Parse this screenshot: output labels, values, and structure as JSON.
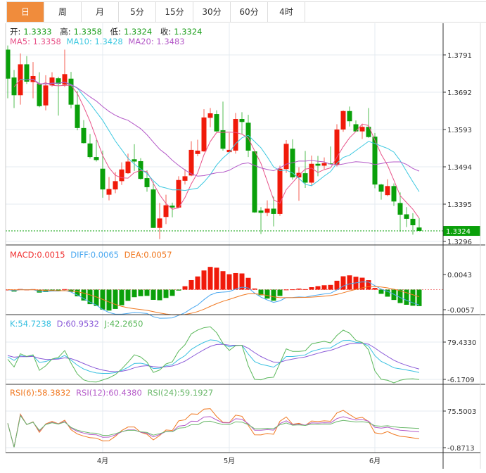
{
  "tabs": [
    "日",
    "周",
    "月",
    "5分",
    "15分",
    "30分",
    "60分",
    "4时"
  ],
  "active_tab": 0,
  "ohlc_info": {
    "open_label": "开:",
    "open": "1.3333",
    "high_label": "高:",
    "high": "1.3358",
    "low_label": "低:",
    "low": "1.3324",
    "close_label": "收:",
    "close": "1.3324"
  },
  "ma_info": {
    "ma5": "MA5: 1.3358",
    "ma10": "MA10: 1.3428",
    "ma20": "MA20: 1.3483"
  },
  "macd_info": {
    "macd": "MACD:0.0015",
    "diff": "DIFF:0.0065",
    "dea": "DEA:0.0057"
  },
  "kdj_info": {
    "k": "K:54.7238",
    "d": "D:60.9532",
    "j": "J:42.2650"
  },
  "rsi_info": {
    "rsi6": "RSI(6):58.3832",
    "rsi12": "RSI(12):60.4380",
    "rsi24": "RSI(24):59.1927"
  },
  "colors": {
    "up": "#f01a0a",
    "down": "#0aa00a",
    "ma5": "#e8548a",
    "ma10": "#3cc8e0",
    "ma20": "#b45ac8",
    "diff": "#4aa8f0",
    "dea": "#f07820",
    "k": "#38c0e0",
    "d": "#8a5ad8",
    "j": "#5ab85a",
    "rsi6": "#f07820",
    "rsi12": "#b45ac8",
    "rsi24": "#6ab86a",
    "last": "#0aa00a",
    "grid": "#e4ebf0"
  },
  "chart_data": {
    "type": "candlestick",
    "price_ticks": [
      "1.3791",
      "1.3692",
      "1.3593",
      "1.3494",
      "1.3395",
      "1.3296"
    ],
    "last_price": "1.3324",
    "macd_ticks": [
      "0.0043",
      "-0.0057"
    ],
    "kdj_ticks": [
      "79.4330",
      "-6.1709"
    ],
    "rsi_ticks": [
      "75.5003",
      "-0.8713"
    ],
    "x_labels": [
      {
        "label": "4月",
        "index": 15
      },
      {
        "label": "5月",
        "index": 35
      },
      {
        "label": "6月",
        "index": 58
      }
    ],
    "candles": [
      [
        1.3805,
        1.3816,
        1.3676,
        1.3728
      ],
      [
        1.3731,
        1.3751,
        1.365,
        1.3684
      ],
      [
        1.3684,
        1.3795,
        1.3659,
        1.3766
      ],
      [
        1.3766,
        1.3788,
        1.3714,
        1.372
      ],
      [
        1.3719,
        1.3772,
        1.3676,
        1.3735
      ],
      [
        1.3715,
        1.3745,
        1.3652,
        1.3655
      ],
      [
        1.3657,
        1.3737,
        1.3644,
        1.371
      ],
      [
        1.371,
        1.3745,
        1.3707,
        1.3731
      ],
      [
        1.3729,
        1.3733,
        1.363,
        1.3714
      ],
      [
        1.3712,
        1.3805,
        1.3706,
        1.374
      ],
      [
        1.3728,
        1.3746,
        1.3649,
        1.3659
      ],
      [
        1.3659,
        1.3695,
        1.3591,
        1.3597
      ],
      [
        1.3597,
        1.3618,
        1.3556,
        1.3557
      ],
      [
        1.3556,
        1.3581,
        1.3516,
        1.352
      ],
      [
        1.352,
        1.3565,
        1.3508,
        1.3512
      ],
      [
        1.3489,
        1.3537,
        1.3412,
        1.3434
      ],
      [
        1.342,
        1.3467,
        1.3405,
        1.3435
      ],
      [
        1.3434,
        1.348,
        1.3424,
        1.3456
      ],
      [
        1.3456,
        1.3506,
        1.3446,
        1.3487
      ],
      [
        1.3477,
        1.3529,
        1.3475,
        1.3508
      ],
      [
        1.3514,
        1.3554,
        1.3483,
        1.3508
      ],
      [
        1.3509,
        1.3517,
        1.346,
        1.3462
      ],
      [
        1.3464,
        1.3485,
        1.3428,
        1.344
      ],
      [
        1.3434,
        1.3454,
        1.3332,
        1.3332
      ],
      [
        1.3332,
        1.3398,
        1.3302,
        1.3357
      ],
      [
        1.3361,
        1.342,
        1.3342,
        1.3392
      ],
      [
        1.3391,
        1.3399,
        1.336,
        1.3386
      ],
      [
        1.3386,
        1.3469,
        1.3384,
        1.3459
      ],
      [
        1.3457,
        1.3488,
        1.3447,
        1.3469
      ],
      [
        1.3471,
        1.3562,
        1.3469,
        1.3539
      ],
      [
        1.3528,
        1.3566,
        1.3522,
        1.3537
      ],
      [
        1.3535,
        1.3647,
        1.3534,
        1.3625
      ],
      [
        1.3624,
        1.365,
        1.3599,
        1.3636
      ],
      [
        1.3634,
        1.3644,
        1.3587,
        1.3588
      ],
      [
        1.3591,
        1.3667,
        1.3537,
        1.3542
      ],
      [
        1.3533,
        1.3584,
        1.3531,
        1.3539
      ],
      [
        1.3537,
        1.3637,
        1.3529,
        1.3621
      ],
      [
        1.3621,
        1.3639,
        1.3581,
        1.3613
      ],
      [
        1.3611,
        1.3632,
        1.352,
        1.3537
      ],
      [
        1.3535,
        1.3535,
        1.3372,
        1.3373
      ],
      [
        1.3378,
        1.3387,
        1.3316,
        1.3372
      ],
      [
        1.3372,
        1.3405,
        1.3363,
        1.3383
      ],
      [
        1.3383,
        1.3415,
        1.3336,
        1.3369
      ],
      [
        1.3369,
        1.3497,
        1.3364,
        1.3489
      ],
      [
        1.3488,
        1.3565,
        1.3478,
        1.3555
      ],
      [
        1.3542,
        1.3567,
        1.346,
        1.3466
      ],
      [
        1.3466,
        1.3493,
        1.3404,
        1.3478
      ],
      [
        1.3477,
        1.3536,
        1.3438,
        1.3452
      ],
      [
        1.3452,
        1.3524,
        1.3443,
        1.3502
      ],
      [
        1.3502,
        1.3523,
        1.3469,
        1.3497
      ],
      [
        1.3497,
        1.3519,
        1.3488,
        1.3504
      ],
      [
        1.3503,
        1.3548,
        1.35,
        1.3501
      ],
      [
        1.35,
        1.3607,
        1.3495,
        1.3593
      ],
      [
        1.3593,
        1.3644,
        1.3587,
        1.3642
      ],
      [
        1.3642,
        1.3654,
        1.3601,
        1.3615
      ],
      [
        1.3607,
        1.3617,
        1.3587,
        1.3588
      ],
      [
        1.3588,
        1.3607,
        1.3568,
        1.36
      ],
      [
        1.36,
        1.365,
        1.3571,
        1.3573
      ],
      [
        1.3574,
        1.3584,
        1.3437,
        1.3447
      ],
      [
        1.3447,
        1.3449,
        1.3407,
        1.3428
      ],
      [
        1.3419,
        1.3461,
        1.3416,
        1.3443
      ],
      [
        1.3443,
        1.345,
        1.339,
        1.3402
      ],
      [
        1.3398,
        1.3426,
        1.3322,
        1.3367
      ],
      [
        1.3368,
        1.3387,
        1.3334,
        1.3356
      ],
      [
        1.3356,
        1.3371,
        1.3314,
        1.3339
      ],
      [
        1.3333,
        1.3358,
        1.3324,
        1.3324
      ]
    ]
  }
}
